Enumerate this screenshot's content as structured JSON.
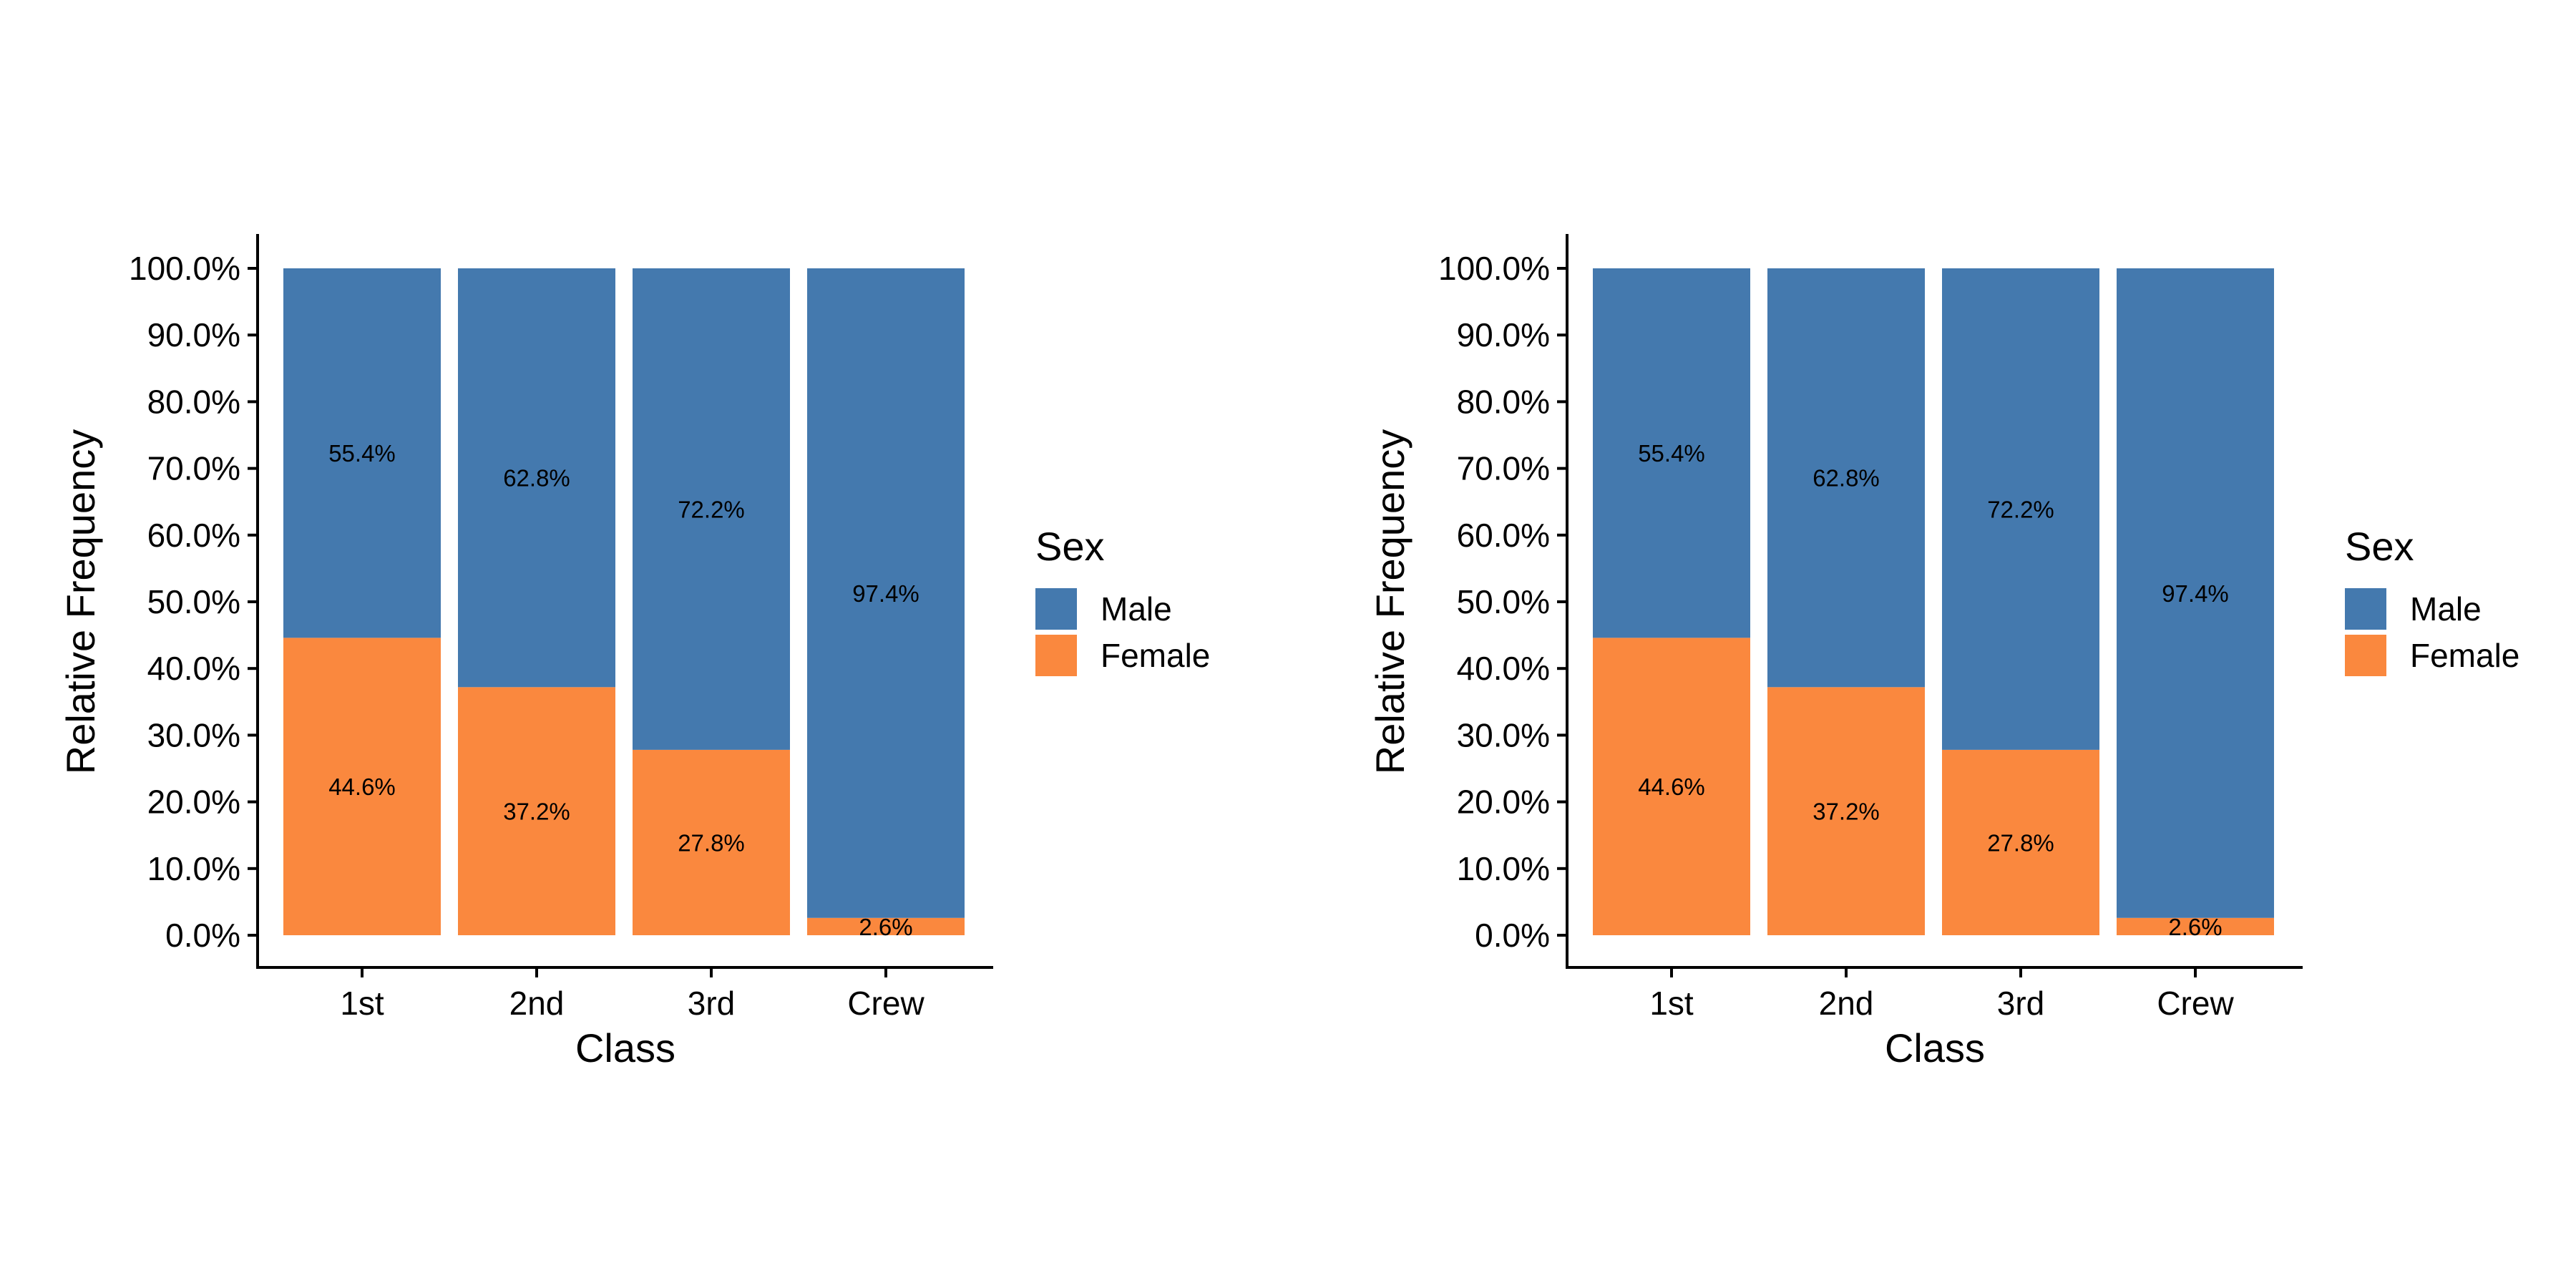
{
  "chart_data": [
    {
      "type": "bar",
      "stacked": true,
      "normalized": true,
      "xlabel": "Class",
      "ylabel": "Relative Frequency",
      "categories": [
        "1st",
        "2nd",
        "3rd",
        "Crew"
      ],
      "series": [
        {
          "name": "Male",
          "values": [
            0.554,
            0.628,
            0.722,
            0.974
          ],
          "labels": [
            "55.4%",
            "62.8%",
            "72.2%",
            "97.4%"
          ],
          "color": "#4479ae"
        },
        {
          "name": "Female",
          "values": [
            0.446,
            0.372,
            0.278,
            0.026
          ],
          "labels": [
            "44.6%",
            "37.2%",
            "27.8%",
            "2.6%"
          ],
          "color": "#fa883e"
        }
      ],
      "yticks": [
        "0.0%",
        "10.0%",
        "20.0%",
        "30.0%",
        "40.0%",
        "50.0%",
        "60.0%",
        "70.0%",
        "80.0%",
        "90.0%",
        "100.0%"
      ],
      "ylim": [
        0,
        1
      ],
      "legend": {
        "title": "Sex",
        "position": "right"
      },
      "grid": false
    },
    {
      "type": "bar",
      "stacked": true,
      "normalized": true,
      "xlabel": "Class",
      "ylabel": "Relative Frequency",
      "categories": [
        "1st",
        "2nd",
        "3rd",
        "Crew"
      ],
      "series": [
        {
          "name": "Male",
          "values": [
            0.554,
            0.628,
            0.722,
            0.974
          ],
          "labels": [
            "55.4%",
            "62.8%",
            "72.2%",
            "97.4%"
          ],
          "color": "#4479ae"
        },
        {
          "name": "Female",
          "values": [
            0.446,
            0.372,
            0.278,
            0.026
          ],
          "labels": [
            "44.6%",
            "37.2%",
            "27.8%",
            "2.6%"
          ],
          "color": "#fa883e"
        }
      ],
      "yticks": [
        "0.0%",
        "10.0%",
        "20.0%",
        "30.0%",
        "40.0%",
        "50.0%",
        "60.0%",
        "70.0%",
        "80.0%",
        "90.0%",
        "100.0%"
      ],
      "ylim": [
        0,
        1
      ],
      "legend": {
        "title": "Sex",
        "position": "right"
      },
      "grid": false
    }
  ]
}
